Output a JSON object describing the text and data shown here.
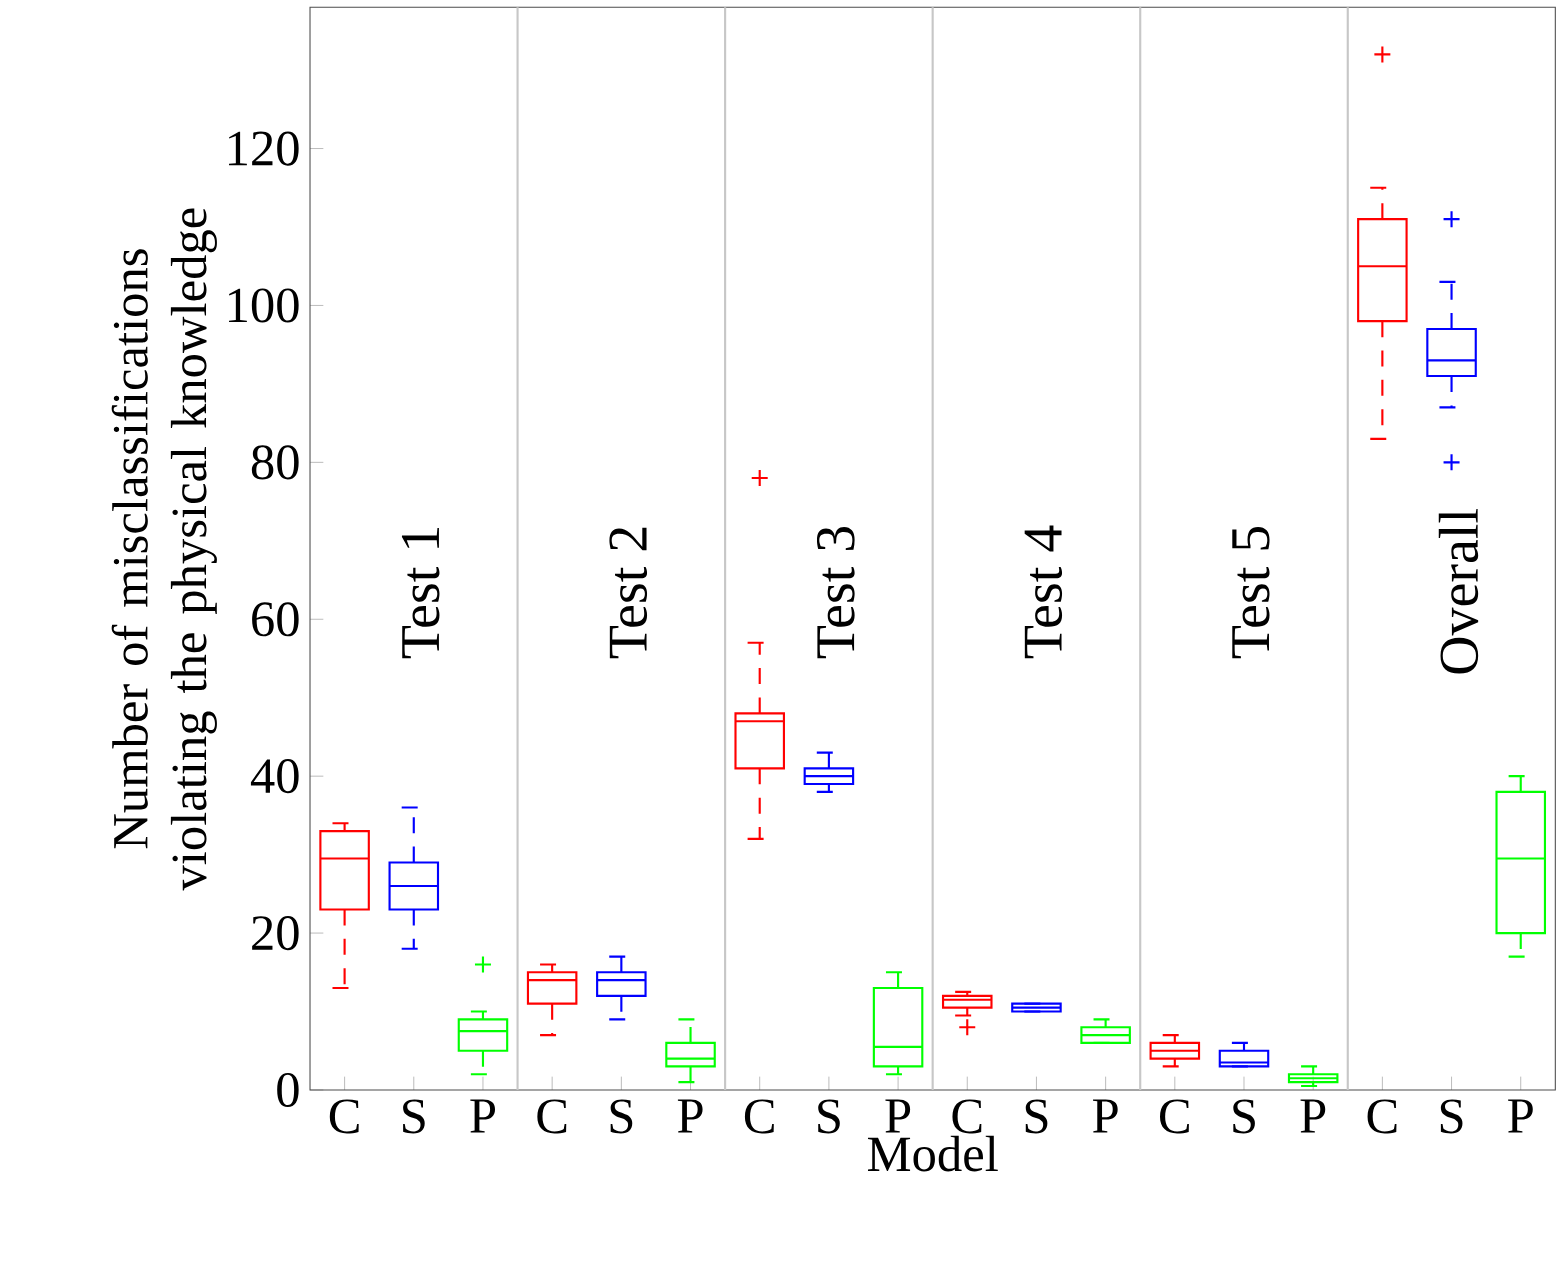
{
  "chart_data": {
    "type": "box",
    "xlabel": "Model",
    "ylabel": "Number of misclassifications violating the physical knowledge",
    "categories": [
      "C",
      "S",
      "P",
      "C",
      "S",
      "P",
      "C",
      "S",
      "P",
      "C",
      "S",
      "P",
      "C",
      "S",
      "P",
      "C",
      "S",
      "P"
    ],
    "ylim": [
      0,
      138
    ],
    "yticks": [
      0,
      20,
      40,
      60,
      80,
      100,
      120
    ],
    "series": [
      {
        "color": "#ff0000",
        "boxes": [
          {
            "low": 13,
            "q1": 23,
            "median": 29.5,
            "q3": 33,
            "high": 34
          },
          null,
          null,
          {
            "low": 7,
            "q1": 11,
            "median": 14,
            "q3": 15,
            "high": 16
          },
          null,
          null,
          {
            "low": 32,
            "q1": 41,
            "median": 47,
            "q3": 48,
            "high": 57,
            "outliers": [
              78
            ]
          },
          null,
          null,
          {
            "low": 9.5,
            "q1": 10.5,
            "median": 11.5,
            "q3": 12,
            "high": 12.5,
            "outliers": [
              8
            ]
          },
          null,
          null,
          {
            "low": 3,
            "q1": 4,
            "median": 5,
            "q3": 6,
            "high": 7
          },
          null,
          null,
          {
            "low": 83,
            "q1": 98,
            "median": 105,
            "q3": 111,
            "high": 115,
            "outliers": [
              132
            ]
          },
          null,
          null
        ]
      },
      {
        "color": "#0000ff",
        "boxes": [
          null,
          {
            "low": 18,
            "q1": 23,
            "median": 26,
            "q3": 29,
            "high": 36
          },
          null,
          null,
          {
            "low": 9,
            "q1": 12,
            "median": 14,
            "q3": 15,
            "high": 17
          },
          null,
          null,
          {
            "low": 38,
            "q1": 39,
            "median": 40,
            "q3": 41,
            "high": 43
          },
          null,
          null,
          {
            "low": 10,
            "q1": 10,
            "median": 10.5,
            "q3": 11,
            "high": 11
          },
          null,
          null,
          {
            "low": 3,
            "q1": 3,
            "median": 3.5,
            "q3": 5,
            "high": 6
          },
          null,
          null,
          {
            "low": 87,
            "q1": 91,
            "median": 93,
            "q3": 97,
            "high": 103,
            "outliers": [
              111,
              80
            ]
          },
          null
        ]
      },
      {
        "color": "#00ff00",
        "boxes": [
          null,
          null,
          {
            "low": 2,
            "q1": 5,
            "median": 7.5,
            "q3": 9,
            "high": 10,
            "outliers": [
              16
            ]
          },
          null,
          null,
          {
            "low": 1,
            "q1": 3,
            "median": 4,
            "q3": 6,
            "high": 9
          },
          null,
          null,
          {
            "low": 2,
            "q1": 3,
            "median": 5.5,
            "q3": 13,
            "high": 15
          },
          null,
          null,
          {
            "low": 6,
            "q1": 6,
            "median": 7,
            "q3": 8,
            "high": 9
          },
          null,
          null,
          {
            "low": 0.5,
            "q1": 1,
            "median": 1.5,
            "q3": 2,
            "high": 3
          },
          null,
          null,
          {
            "low": 17,
            "q1": 20,
            "median": 29.5,
            "q3": 38,
            "high": 40
          }
        ]
      }
    ],
    "annotations": [
      "Test 1",
      "Test 2",
      "Test 3",
      "Test 4",
      "Test 5",
      "Overall"
    ]
  }
}
